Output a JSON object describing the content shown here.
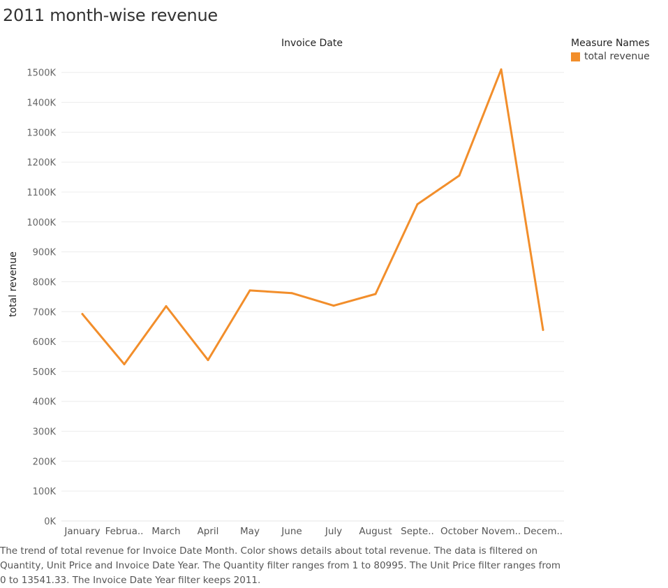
{
  "page": {
    "title": "2011 month-wise revenue",
    "caption": "The trend of total revenue for Invoice Date Month.  Color shows details about total revenue. The data is filtered on Quantity, Unit Price and Invoice Date Year. The Quantity filter ranges from 1 to 80995. The Unit Price filter ranges from 0 to 13541.33. The Invoice Date Year filter keeps 2011."
  },
  "legend": {
    "title": "Measure Names",
    "items": [
      {
        "label": "total revenue",
        "color": "#F28E2B"
      }
    ]
  },
  "chart_data": {
    "type": "line",
    "title": "2011 month-wise revenue",
    "column_header": "Invoice Date",
    "xlabel": "",
    "ylabel": "total revenue",
    "categories": [
      "January",
      "Februa..",
      "March",
      "April",
      "May",
      "June",
      "July",
      "August",
      "Septe..",
      "October",
      "Novem..",
      "Decem.."
    ],
    "series": [
      {
        "name": "total revenue",
        "color": "#F28E2B",
        "values": [
          692000,
          524000,
          718000,
          538000,
          771000,
          762000,
          720000,
          759000,
          1059000,
          1155000,
          1510000,
          639000
        ]
      }
    ],
    "ylim": [
      0,
      1560000
    ],
    "y_ticks": [
      0,
      100000,
      200000,
      300000,
      400000,
      500000,
      600000,
      700000,
      800000,
      900000,
      1000000,
      1100000,
      1200000,
      1300000,
      1400000,
      1500000
    ],
    "y_tick_labels": [
      "0K",
      "100K",
      "200K",
      "300K",
      "400K",
      "500K",
      "600K",
      "700K",
      "800K",
      "900K",
      "1000K",
      "1100K",
      "1200K",
      "1300K",
      "1400K",
      "1500K"
    ],
    "grid": true,
    "legend_position": "top-right"
  }
}
